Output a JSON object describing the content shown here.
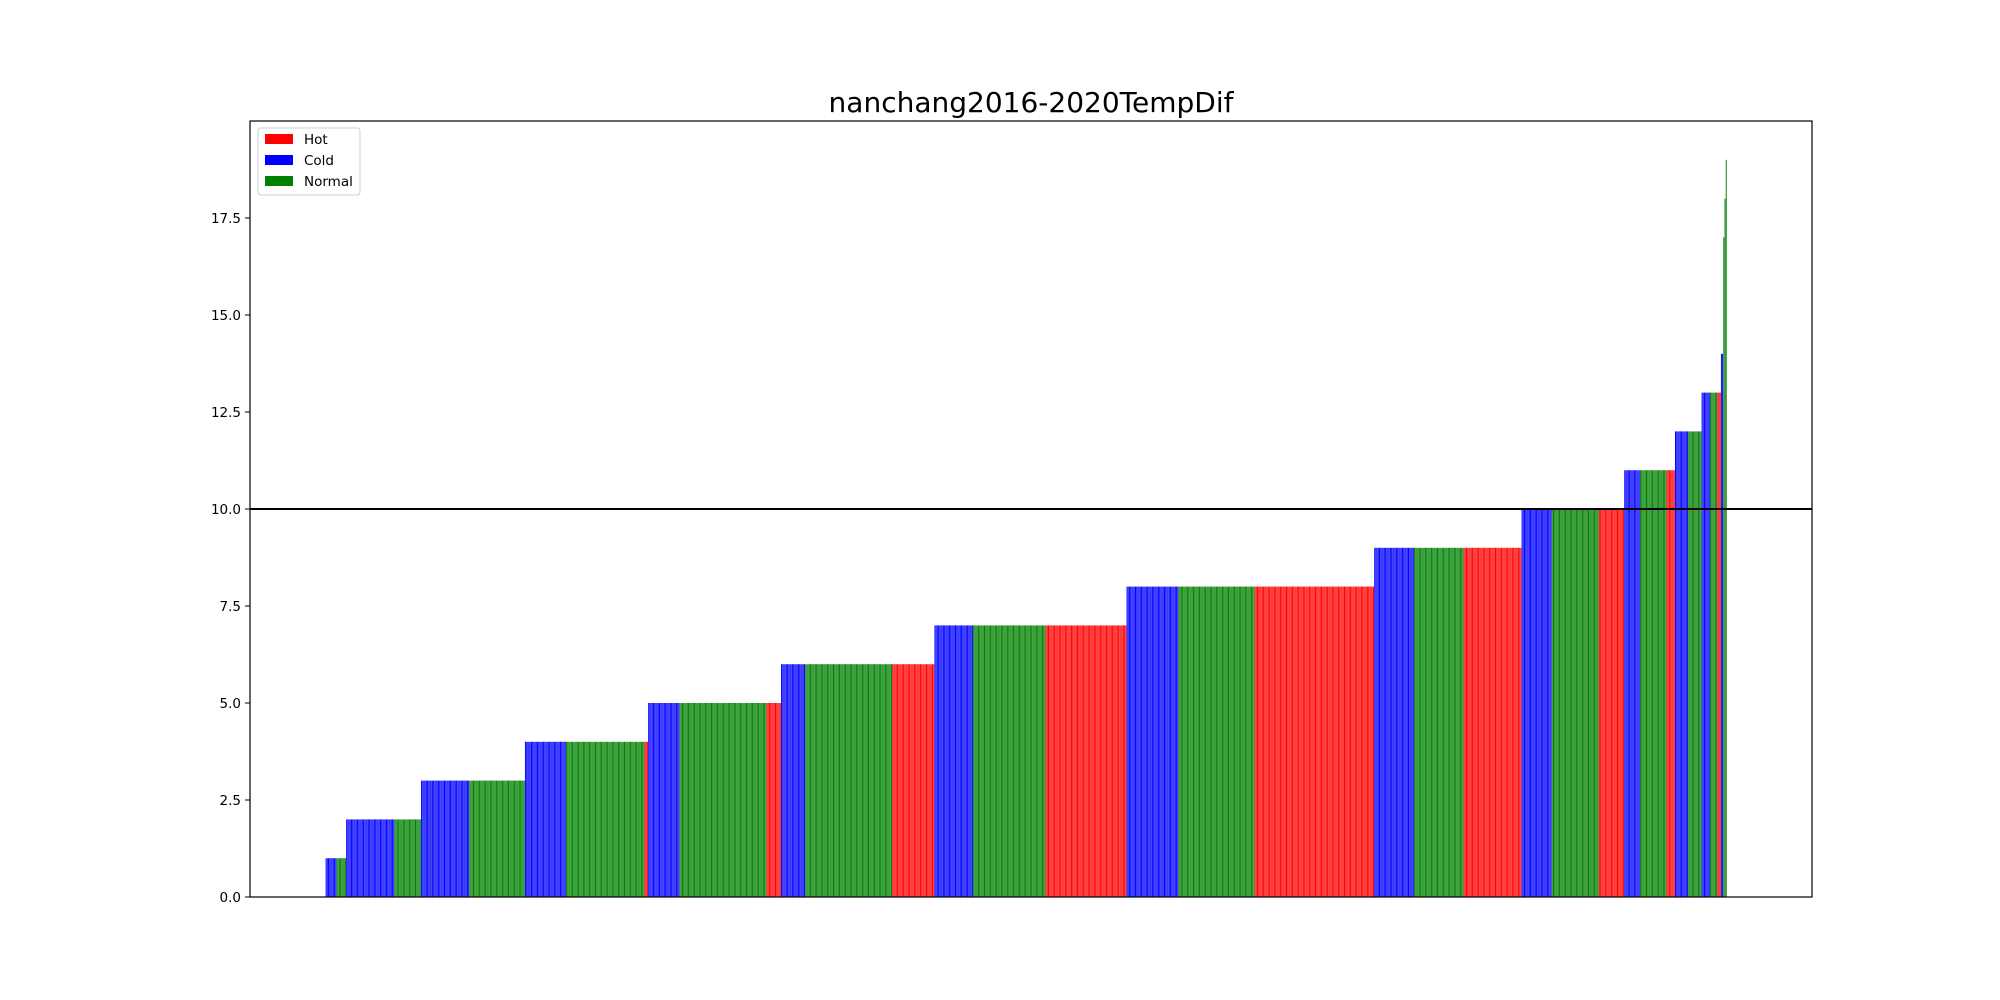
{
  "chart_data": {
    "type": "bar",
    "title": "nanchang2016-2020TempDif",
    "xlabel": "",
    "ylabel": "",
    "ylim": [
      0,
      20
    ],
    "xlim": [
      -63,
      1230
    ],
    "yticks": [
      "0.0",
      "2.5",
      "5.0",
      "7.5",
      "10.0",
      "12.5",
      "15.0",
      "17.5"
    ],
    "threshold": 10.0,
    "legend_position": "upper-left",
    "legend": [
      {
        "name": "Hot",
        "color": "#ff0000"
      },
      {
        "name": "Cold",
        "color": "#0000ff"
      },
      {
        "name": "Normal",
        "color": "#008000"
      }
    ],
    "bar_colors": {
      "Hot": "#ff0000",
      "Cold": "#0000ff",
      "Normal": "#008000"
    },
    "runs": [
      {
        "category": "Cold",
        "value": 1,
        "count": 9
      },
      {
        "category": "Normal",
        "value": 1,
        "count": 8
      },
      {
        "category": "Cold",
        "value": 2,
        "count": 40
      },
      {
        "category": "Normal",
        "value": 2,
        "count": 22
      },
      {
        "category": "Cold",
        "value": 3,
        "count": 40
      },
      {
        "category": "Normal",
        "value": 3,
        "count": 46
      },
      {
        "category": "Cold",
        "value": 4,
        "count": 34
      },
      {
        "category": "Normal",
        "value": 4,
        "count": 65
      },
      {
        "category": "Hot",
        "value": 4,
        "count": 3
      },
      {
        "category": "Cold",
        "value": 5,
        "count": 26
      },
      {
        "category": "Normal",
        "value": 5,
        "count": 72
      },
      {
        "category": "Hot",
        "value": 5,
        "count": 12
      },
      {
        "category": "Cold",
        "value": 6,
        "count": 20
      },
      {
        "category": "Normal",
        "value": 6,
        "count": 72
      },
      {
        "category": "Hot",
        "value": 6,
        "count": 35
      },
      {
        "category": "Cold",
        "value": 7,
        "count": 32
      },
      {
        "category": "Normal",
        "value": 7,
        "count": 60
      },
      {
        "category": "Hot",
        "value": 7,
        "count": 67
      },
      {
        "category": "Cold",
        "value": 8,
        "count": 43
      },
      {
        "category": "Normal",
        "value": 8,
        "count": 63
      },
      {
        "category": "Hot",
        "value": 8,
        "count": 99
      },
      {
        "category": "Cold",
        "value": 9,
        "count": 33
      },
      {
        "category": "Normal",
        "value": 9,
        "count": 41
      },
      {
        "category": "Hot",
        "value": 9,
        "count": 48
      },
      {
        "category": "Cold",
        "value": 10,
        "count": 25
      },
      {
        "category": "Normal",
        "value": 10,
        "count": 39
      },
      {
        "category": "Hot",
        "value": 10,
        "count": 21
      },
      {
        "category": "Cold",
        "value": 11,
        "count": 13
      },
      {
        "category": "Normal",
        "value": 11,
        "count": 22
      },
      {
        "category": "Hot",
        "value": 11,
        "count": 7
      },
      {
        "category": "Cold",
        "value": 12,
        "count": 11
      },
      {
        "category": "Normal",
        "value": 12,
        "count": 11
      },
      {
        "category": "Cold",
        "value": 13,
        "count": 7
      },
      {
        "category": "Normal",
        "value": 13,
        "count": 6
      },
      {
        "category": "Hot",
        "value": 13,
        "count": 3
      },
      {
        "category": "Cold",
        "value": 14,
        "count": 2
      },
      {
        "category": "Normal",
        "value": 17,
        "count": 1
      },
      {
        "category": "Normal",
        "value": 18,
        "count": 1
      },
      {
        "category": "Normal",
        "value": 19,
        "count": 1
      }
    ]
  }
}
